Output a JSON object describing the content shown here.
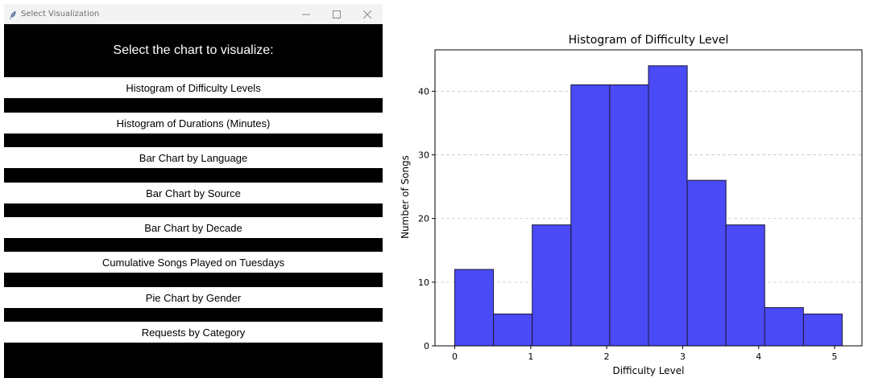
{
  "window": {
    "title": "Select Visualization",
    "heading": "Select the chart to visualize:"
  },
  "menu": {
    "items": [
      {
        "label": "Histogram of Difficulty Levels"
      },
      {
        "label": "Histogram of Durations (Minutes)"
      },
      {
        "label": "Bar Chart by Language"
      },
      {
        "label": "Bar Chart by Source"
      },
      {
        "label": "Bar Chart by Decade"
      },
      {
        "label": "Cumulative Songs Played on Tuesdays"
      },
      {
        "label": "Pie Chart by Gender"
      },
      {
        "label": "Requests by Category"
      }
    ]
  },
  "colors": {
    "bar_fill": "#4a4af6",
    "bar_edge": "#1a1a3a",
    "window_bg": "#000000",
    "titlebar_bg": "#f3f3f3"
  },
  "chart_data": {
    "type": "bar",
    "title": "Histogram of Difficulty Level",
    "xlabel": "Difficulty Level",
    "ylabel": "Number of Songs",
    "bin_edges": [
      0,
      0.51,
      1.02,
      1.53,
      2.04,
      2.55,
      3.06,
      3.57,
      4.08,
      4.59,
      5.1
    ],
    "values": [
      12,
      5,
      19,
      41,
      41,
      44,
      26,
      19,
      6,
      5
    ],
    "xlim": [
      -0.26,
      5.36
    ],
    "ylim": [
      0,
      46.5
    ],
    "xticks": [
      "0",
      "1",
      "2",
      "3",
      "4",
      "5"
    ],
    "yticks": [
      "0",
      "10",
      "20",
      "30",
      "40"
    ],
    "grid": "y-dashed"
  }
}
